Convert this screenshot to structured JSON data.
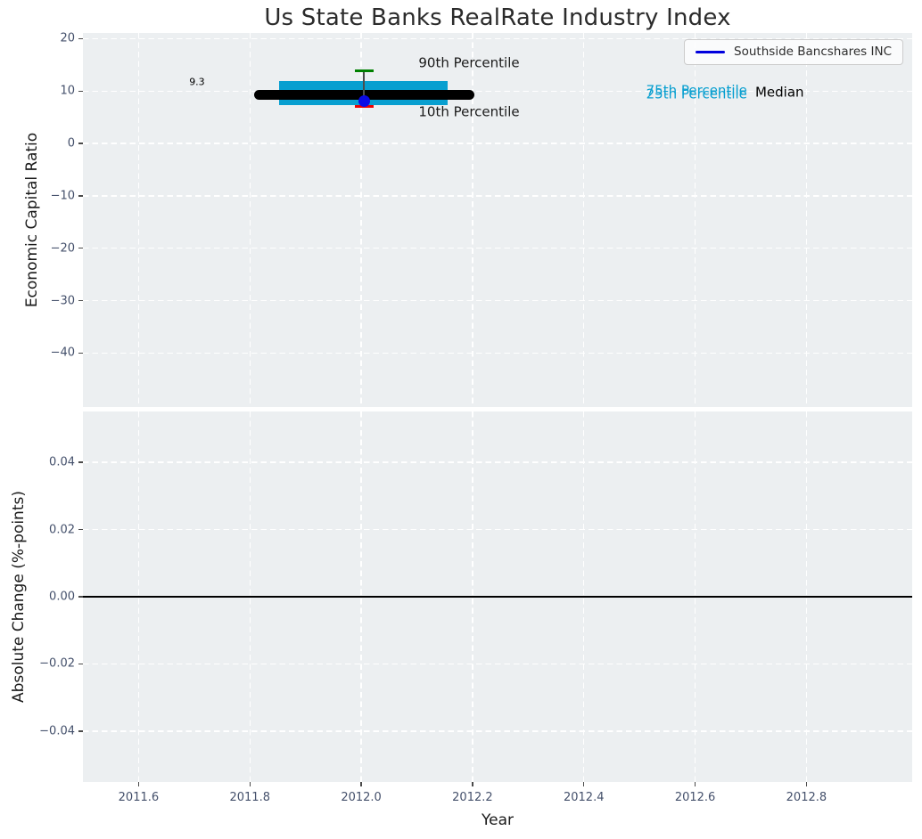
{
  "figure": {
    "title": "Us State Banks RealRate Industry Index",
    "legend": {
      "label": "Southside Bancshares INC",
      "line_color": "#0000dd"
    },
    "colors": {
      "plot_bg": "#eceff1",
      "grid": "#ffffff",
      "tick_label": "#44506b",
      "axis_label": "#1a1a1a",
      "band": "#089fd0",
      "median_line": "#000000",
      "p90_cap": "#008000",
      "p10_cap": "#ee0000",
      "whisker_line": "#4d4d4d",
      "company_dot": "#0a0ae6",
      "zero_line": "#000000"
    }
  },
  "chart_data": [
    {
      "type": "box-line",
      "title": "Us State Banks RealRate Industry Index",
      "ylabel": "Economic Capital Ratio",
      "xlim": [
        2011.5,
        2012.99
      ],
      "ylim": [
        -50.3,
        21.1
      ],
      "yticks": [
        20,
        10,
        0,
        -10,
        -20,
        -30,
        -40
      ],
      "ytick_labels": [
        "20",
        "10",
        "0",
        "−10",
        "−20",
        "−30",
        "−40"
      ],
      "xticks": [
        2011.6,
        2011.8,
        2012.0,
        2012.2,
        2012.4,
        2012.6,
        2012.8
      ],
      "grid": true,
      "legend_position": "upper right",
      "year": 2012.0,
      "median": 9.3,
      "p90": 13.8,
      "p75": 11.9,
      "p25": 7.3,
      "p10": 7.0,
      "company_point": {
        "name": "Southside Bancshares INC",
        "x": 2012.005,
        "y": 8.05
      },
      "median_line_span": [
        2011.807,
        2012.203
      ],
      "band_span": [
        2011.853,
        2012.156
      ],
      "whisker_x": 2012.005,
      "annotations": [
        {
          "text": "9.3",
          "x": 2011.705,
          "y": 11.7,
          "color": "#000000",
          "size": 11,
          "ha": "center"
        },
        {
          "text": "90th Percentile",
          "x": 2012.103,
          "y": 15.3,
          "color": "#1a1a1a",
          "size": 15,
          "ha": "left"
        },
        {
          "text": "10th Percentile",
          "x": 2012.103,
          "y": 5.93,
          "color": "#1a1a1a",
          "size": 15,
          "ha": "left"
        },
        {
          "text": "75th Percentile",
          "x": 2012.512,
          "y": 10.05,
          "color": "#089fd0",
          "size": 15,
          "ha": "left"
        },
        {
          "text": "25th Percentile",
          "x": 2012.512,
          "y": 9.45,
          "color": "#089fd0",
          "size": 15,
          "ha": "left"
        },
        {
          "text": "Median",
          "x": 2012.708,
          "y": 9.73,
          "color": "#000000",
          "size": 15,
          "ha": "left"
        }
      ]
    },
    {
      "type": "line",
      "ylabel": "Absolute Change (%-points)",
      "xlabel": "Year",
      "xlim": [
        2011.5,
        2012.99
      ],
      "ylim": [
        -0.0551,
        0.0551
      ],
      "yticks": [
        0.04,
        0.02,
        0.0,
        -0.02,
        -0.04
      ],
      "ytick_labels": [
        "0.04",
        "0.02",
        "0.00",
        "−0.02",
        "−0.04"
      ],
      "xticks": [
        2011.6,
        2011.8,
        2012.0,
        2012.2,
        2012.4,
        2012.6,
        2012.8
      ],
      "xtick_labels": [
        "2011.6",
        "2011.8",
        "2012.0",
        "2012.2",
        "2012.4",
        "2012.6",
        "2012.8"
      ],
      "grid": true,
      "zero_line_y": 0.0
    }
  ]
}
